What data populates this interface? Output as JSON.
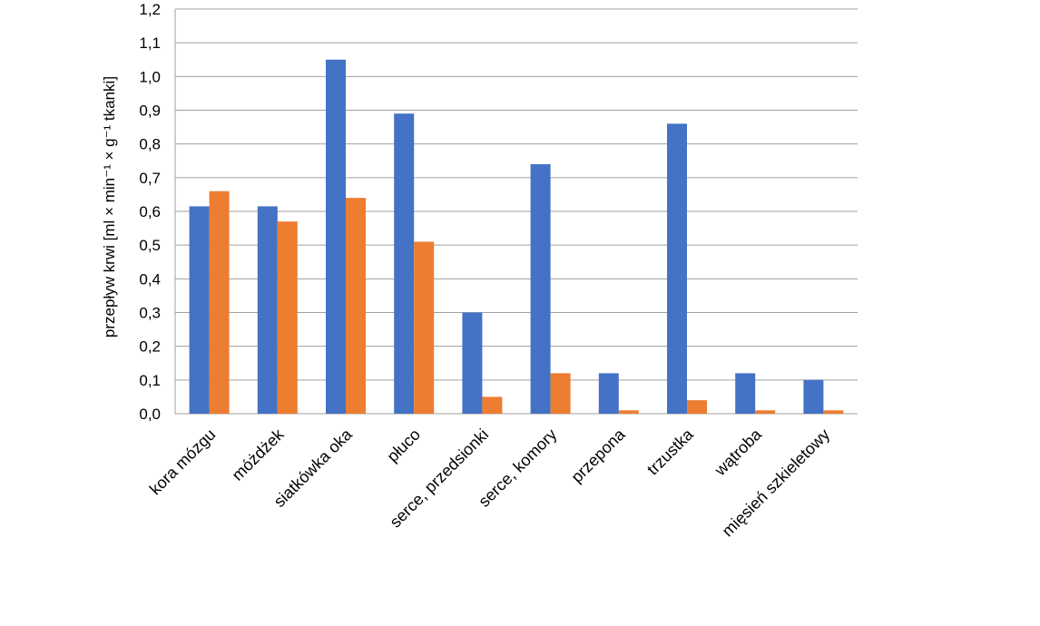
{
  "chart_data": {
    "type": "bar",
    "y_label": "przepływ krwi [ml × min⁻¹ × g⁻¹ tkanki]",
    "categories": [
      "kora mózgu",
      "móżdżek",
      "siatkówka oka",
      "płuco",
      "serce, przedsionki",
      "serce, komory",
      "przepona",
      "trzustka",
      "wątroba",
      "mięsień szkieletowy"
    ],
    "series": [
      {
        "color": "#4472c4",
        "values": [
          0.615,
          0.615,
          1.05,
          0.89,
          0.3,
          0.74,
          0.12,
          0.86,
          0.12,
          0.1
        ]
      },
      {
        "color": "#ed7d31",
        "values": [
          0.66,
          0.57,
          0.64,
          0.51,
          0.05,
          0.12,
          0.01,
          0.04,
          0.01,
          0.01
        ]
      }
    ],
    "ylim": [
      0,
      1.2
    ],
    "yticks": [
      {
        "value": 0,
        "label": "0,0"
      },
      {
        "value": 0.1,
        "label": "0,1"
      },
      {
        "value": 0.2,
        "label": "0,2"
      },
      {
        "value": 0.3,
        "label": "0,3"
      },
      {
        "value": 0.4,
        "label": "0,4"
      },
      {
        "value": 0.5,
        "label": "0,5"
      },
      {
        "value": 0.6,
        "label": "0,6"
      },
      {
        "value": 0.7,
        "label": "0,7"
      },
      {
        "value": 0.8,
        "label": "0,8"
      },
      {
        "value": 0.9,
        "label": "0,9"
      },
      {
        "value": 1.0,
        "label": "1,0"
      },
      {
        "value": 1.1,
        "label": "1,1"
      },
      {
        "value": 1.2,
        "label": "1,2"
      }
    ],
    "grid": true
  }
}
